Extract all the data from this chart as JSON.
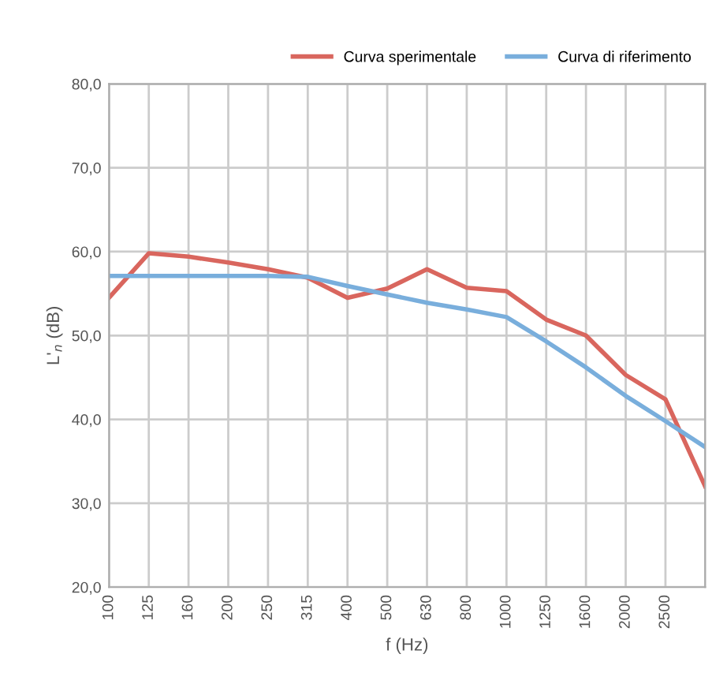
{
  "chart_data": {
    "type": "line",
    "categories": [
      "100",
      "125",
      "160",
      "200",
      "250",
      "315",
      "400",
      "500",
      "630",
      "800",
      "1000",
      "1250",
      "1600",
      "2000",
      "2500",
      null
    ],
    "series": [
      {
        "name": "Curva sperimentale",
        "color": "#d9665e",
        "values": [
          54.5,
          59.8,
          59.4,
          58.7,
          57.9,
          56.9,
          54.5,
          55.6,
          57.9,
          55.7,
          55.3,
          51.9,
          50.0,
          45.3,
          42.4,
          32.0
        ]
      },
      {
        "name": "Curva di riferimento",
        "color": "#79aedc",
        "values": [
          57.1,
          57.1,
          57.1,
          57.1,
          57.1,
          57.0,
          55.9,
          54.9,
          53.9,
          53.1,
          52.2,
          49.3,
          46.2,
          42.8,
          39.8,
          36.7
        ]
      }
    ],
    "xlabel": "f (Hz)",
    "ylabel": "L'$_{n}$ (dB)",
    "ylim": [
      20,
      80
    ],
    "yticks": [
      {
        "value": 20,
        "label": "20,0"
      },
      {
        "value": 30,
        "label": "30,0"
      },
      {
        "value": 40,
        "label": "40,0"
      },
      {
        "value": 50,
        "label": "50,0"
      },
      {
        "value": 60,
        "label": "60,0"
      },
      {
        "value": 70,
        "label": "70,0"
      },
      {
        "value": 80,
        "label": "80,0"
      }
    ],
    "grid": true,
    "legend": "top right",
    "marker": "none",
    "line_style": "solid"
  }
}
